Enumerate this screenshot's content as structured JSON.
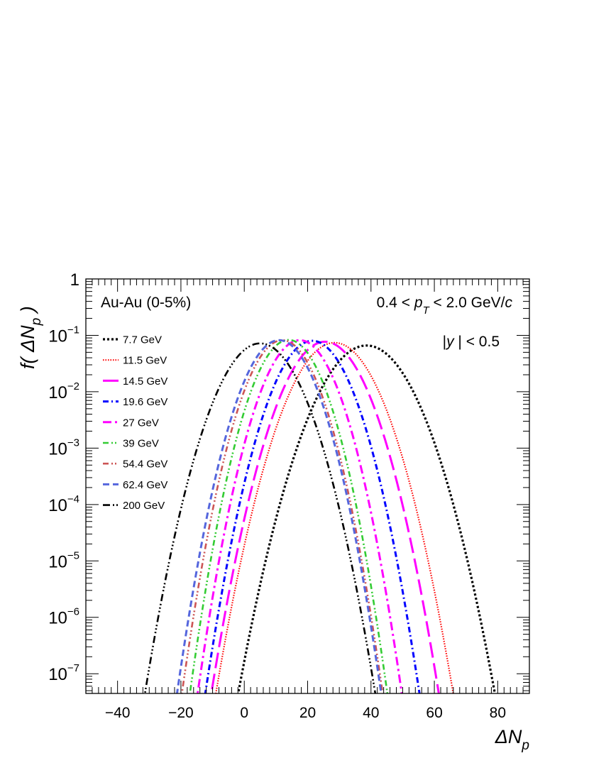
{
  "chart_data": {
    "type": "line",
    "title": "",
    "xlabel": "ΔN",
    "xlabel_sub": "p",
    "ylabel": "f( ΔN",
    "ylabel_sub": "p",
    "ylabel_close": " )",
    "xlim": [
      -50,
      90
    ],
    "ylim_log10": [
      -7.35,
      0
    ],
    "yscale": "log",
    "grid": false,
    "legend_position": "top-left",
    "x_ticks": [
      -40,
      -20,
      0,
      20,
      40,
      60,
      80
    ],
    "x_tick_labels": [
      "−40",
      "−20",
      "0",
      "20",
      "40",
      "60",
      "80"
    ],
    "y_tick_labels": [
      {
        "exp": 0,
        "base": "1",
        "sup": ""
      },
      {
        "exp": -1,
        "base": "10",
        "sup": "−1"
      },
      {
        "exp": -2,
        "base": "10",
        "sup": "−2"
      },
      {
        "exp": -3,
        "base": "10",
        "sup": "−3"
      },
      {
        "exp": -4,
        "base": "10",
        "sup": "−4"
      },
      {
        "exp": -5,
        "base": "10",
        "sup": "−5"
      },
      {
        "exp": -6,
        "base": "10",
        "sup": "−6"
      },
      {
        "exp": -7,
        "base": "10",
        "sup": "−7"
      }
    ],
    "annotations": {
      "system": "Au-Au (0-5%)",
      "pt_pre": "0.4 < ",
      "pt_var": "p",
      "pt_sub": "T",
      "pt_post": " < 2.0 GeV/",
      "pt_c": "c",
      "y_pre": "|",
      "y_var": "y",
      "y_post": " | < 0.5"
    },
    "series": [
      {
        "name": "7.7 GeV",
        "mean": 38.6,
        "sigma": 7.6,
        "peak": 0.066,
        "color": "#000000",
        "dash": "3,3",
        "width": 3.2
      },
      {
        "name": "11.5 GeV",
        "mean": 28.5,
        "sigma": 7.0,
        "peak": 0.074,
        "color": "#ff0000",
        "dash": "1.5,2",
        "width": 2.2
      },
      {
        "name": "14.5 GeV",
        "mean": 25.5,
        "sigma": 6.7,
        "peak": 0.077,
        "color": "#ff00ff",
        "dash": "22,8",
        "width": 3.0
      },
      {
        "name": "19.6 GeV",
        "mean": 21.5,
        "sigma": 6.3,
        "peak": 0.08,
        "color": "#0000ff",
        "dash": "8,4,2,4",
        "width": 3.0
      },
      {
        "name": "27 GeV",
        "mean": 17.5,
        "sigma": 6.0,
        "peak": 0.082,
        "color": "#ff00ff",
        "dash": "12,5,3,5",
        "width": 3.0
      },
      {
        "name": "39 GeV",
        "mean": 14.0,
        "sigma": 5.8,
        "peak": 0.083,
        "color": "#33cc33",
        "dash": "8,4,2,3,2,4",
        "width": 2.6
      },
      {
        "name": "54.4 GeV",
        "mean": 12.0,
        "sigma": 5.9,
        "peak": 0.082,
        "color": "#cc5555",
        "dash": "8,4,2,3,2,3,2,4",
        "width": 2.6
      },
      {
        "name": "62.4 GeV",
        "mean": 11.0,
        "sigma": 6.0,
        "peak": 0.082,
        "color": "#5566dd",
        "dash": "9,5",
        "width": 3.0
      },
      {
        "name": "200 GeV",
        "mean": 5.0,
        "sigma": 6.8,
        "peak": 0.072,
        "color": "#000000",
        "dash": "10,4,2,3,2,3,2,4",
        "width": 2.6
      }
    ]
  }
}
